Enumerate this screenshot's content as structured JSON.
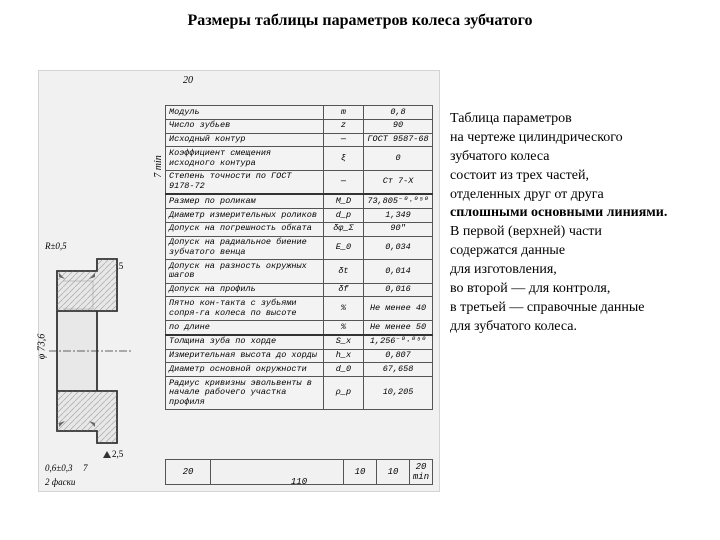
{
  "title": "Размеры таблицы параметров колеса зубчатого",
  "description": {
    "line1": "Таблица параметров",
    "line2": "на чертеже цилиндрического",
    "line3": " зубчатого колеса",
    "line4": "состоит из трех частей,",
    "line5": "отделенных друг от друга",
    "line6": " сплошными основными линиями.",
    "line7": "В первой (верхней) части",
    "line8": "содержатся данные",
    "line9": "для изготовления,",
    "line10": "во второй — для контроля,",
    "line11": "в третьей — справочные данные",
    "line12": "для зубчатого колеса."
  },
  "dimensions": {
    "top_20": "20",
    "left_7min": "7 min",
    "dia": "φ 73,6",
    "radius": "R±0,5",
    "tri1": "2,5",
    "tri2": "2,5",
    "bot_tol": "0,6±0,3",
    "bot_faski": "2 фаски",
    "bot_7": "7"
  },
  "table_rows": [
    {
      "label": "Модуль",
      "symbol": "m",
      "value": "0,8"
    },
    {
      "label": "Число зубьев",
      "symbol": "z",
      "value": "90"
    },
    {
      "label": "Исходный контур",
      "symbol": "—",
      "value": "ГОСТ 9587-68"
    },
    {
      "label": "Коэффициент смещения исходного контура",
      "symbol": "ξ",
      "value": "0"
    },
    {
      "label": "Степень точности по ГОСТ 9178-72",
      "symbol": "—",
      "value": "Ст 7-Х"
    },
    {
      "label": "Размер по роликам",
      "symbol": "M_D",
      "value": "73,805⁻⁰·⁰⁵⁰"
    },
    {
      "label": "Диаметр измерительных роликов",
      "symbol": "d_р",
      "value": "1,349"
    },
    {
      "label": "Допуск на погрешность обката",
      "symbol": "δφ_Σ",
      "value": "90″"
    },
    {
      "label": "Допуск на радиальное биение зубчатого венца",
      "symbol": "E_0",
      "value": "0,034"
    },
    {
      "label": "Допуск на разность окружных шагов",
      "symbol": "δt",
      "value": "0,014"
    },
    {
      "label": "Допуск на профиль",
      "symbol": "δf",
      "value": "0,016"
    },
    {
      "label": "Пятно кон-такта с зубьями сопря-га колеса   по высоте",
      "symbol": "%",
      "value": "Не менее 40"
    },
    {
      "label": "по длине",
      "symbol": "%",
      "value": "Не менее 50"
    },
    {
      "label": "Толщина зуба по хорде",
      "symbol": "S_x",
      "value": "1,256⁻⁰·⁰⁵⁰"
    },
    {
      "label": "Измерительная высота до хорды",
      "symbol": "h_x",
      "value": "0,807"
    },
    {
      "label": "Диаметр основной окружности",
      "symbol": "d_0",
      "value": "67,658"
    },
    {
      "label": "Радиус кривизны эвольвенты в начале рабочего участка профиля",
      "symbol": "ρ_p",
      "value": "10,205"
    }
  ],
  "footer": {
    "c1": "20",
    "c2": "10",
    "c3": "10",
    "c4": "20 min",
    "w": "110"
  },
  "style": {
    "title_fontsize": 16,
    "desc_fontsize": 14,
    "table_fontsize": 8.5,
    "bg": "#ffffff",
    "figure_bg": "#f1f1f1",
    "line_color": "#555555"
  }
}
